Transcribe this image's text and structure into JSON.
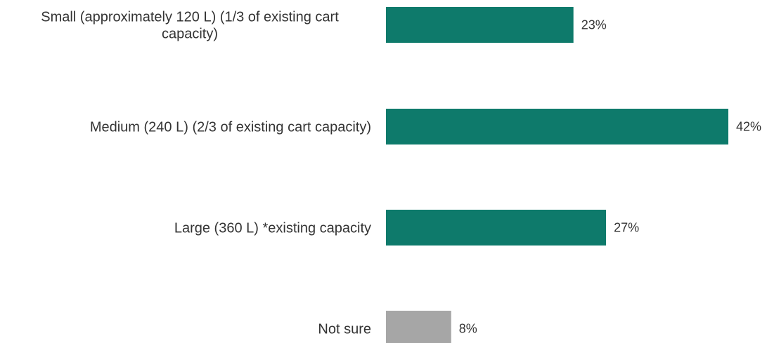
{
  "chart_data": {
    "type": "bar",
    "orientation": "horizontal",
    "categories": [
      "Small (approximately 120 L) (1/3 of existing cart capacity)",
      "Medium (240 L) (2/3 of existing cart capacity)",
      "Large (360 L) *existing capacity",
      "Not sure"
    ],
    "values": [
      23,
      42,
      27,
      8
    ],
    "value_labels": [
      "23%",
      "42%",
      "27%",
      "8%"
    ],
    "unit": "%",
    "colors": [
      "#0e7a6b",
      "#0e7a6b",
      "#0e7a6b",
      "#a6a6a6"
    ],
    "xlim": [
      0,
      42
    ],
    "title": "",
    "xlabel": "",
    "ylabel": "",
    "grid": false,
    "legend": "none"
  }
}
